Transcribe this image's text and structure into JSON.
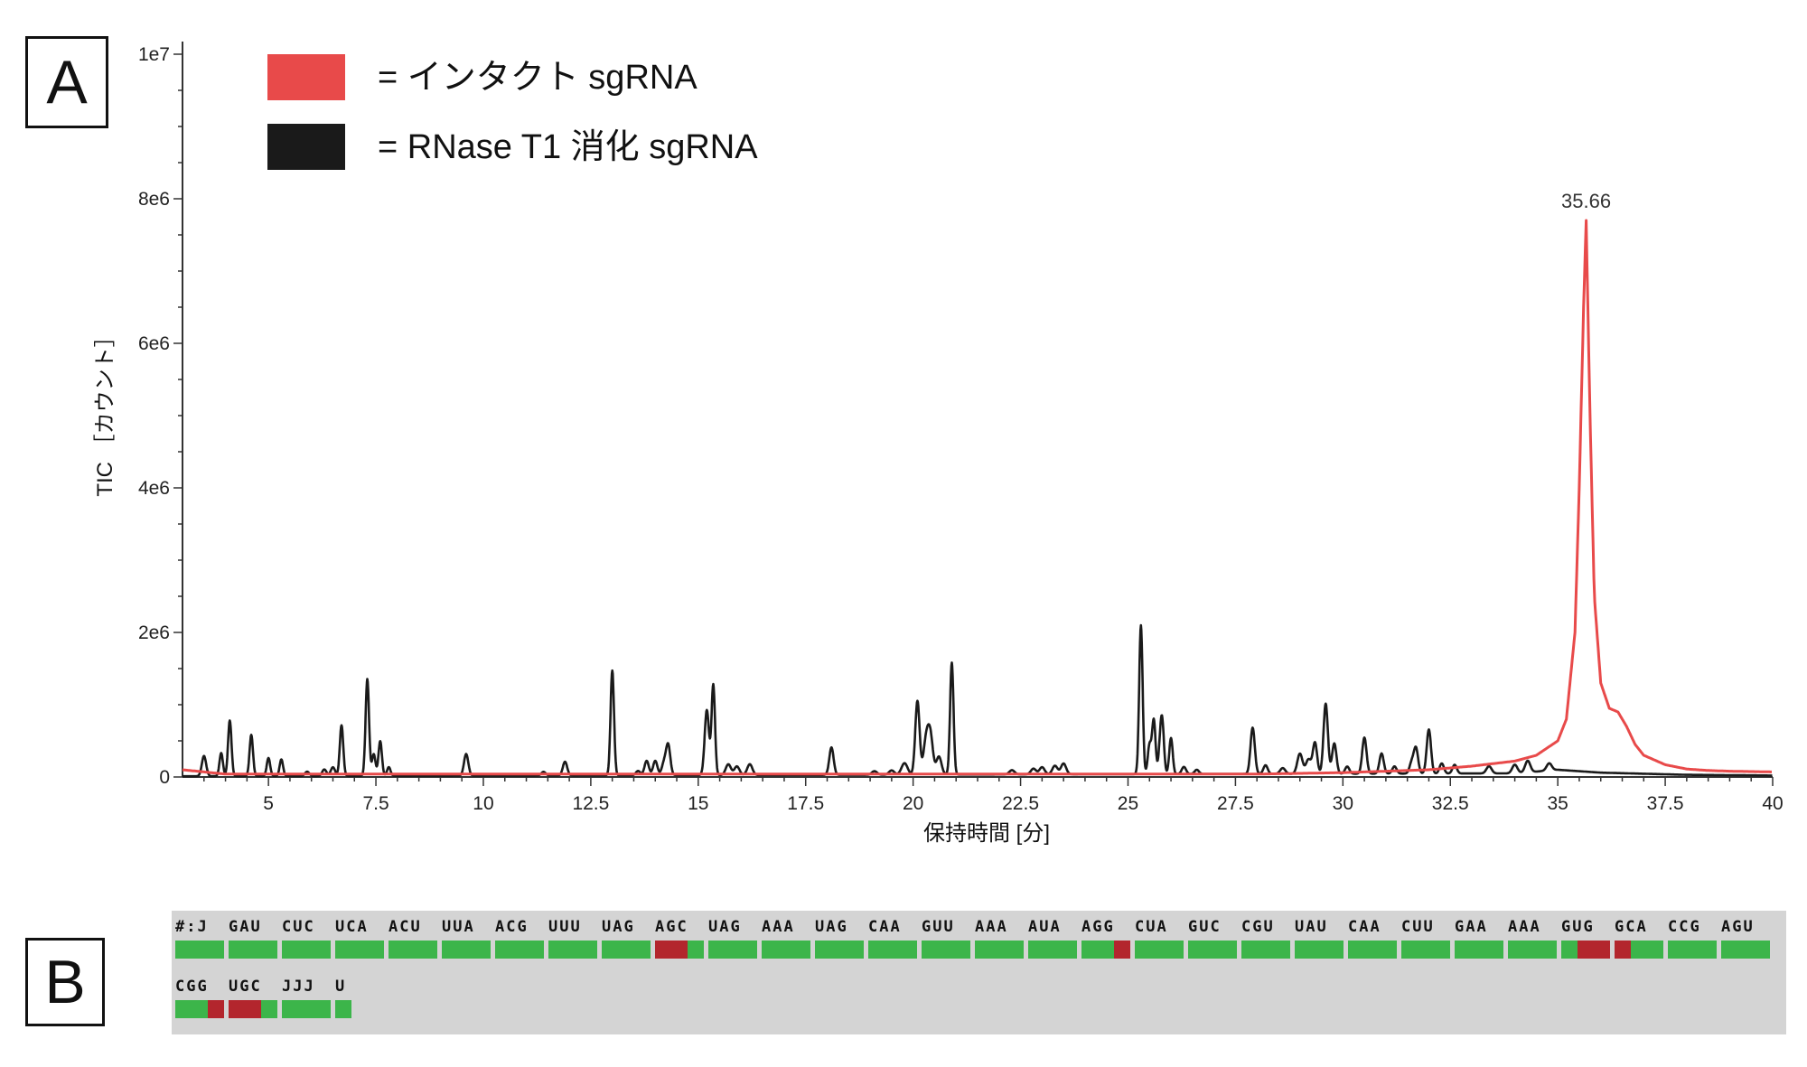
{
  "panels": {
    "a": "A",
    "b": "B"
  },
  "colors": {
    "intact": "#e84a4a",
    "digest": "#1a1a1a",
    "ok": "#3cb54a",
    "bad": "#b3262d"
  },
  "chart_data": {
    "type": "line",
    "xlabel": "保持時間 [分]",
    "ylabel": "TIC ［カウント］",
    "xlim": [
      3,
      40
    ],
    "ylim": [
      0,
      10000000
    ],
    "x_ticks": [
      5,
      7.5,
      10,
      12.5,
      15,
      17.5,
      20,
      22.5,
      25,
      27.5,
      30,
      32.5,
      35,
      37.5,
      40
    ],
    "x_tick_labels": [
      "5",
      "7.5",
      "10",
      "12.5",
      "15",
      "17.5",
      "20",
      "22.5",
      "25",
      "27.5",
      "30",
      "32.5",
      "35",
      "37.5",
      "40"
    ],
    "y_ticks": [
      0,
      2000000,
      4000000,
      6000000,
      8000000,
      10000000
    ],
    "y_tick_labels": [
      "0",
      "2e6",
      "4e6",
      "6e6",
      "8e6",
      "1e7"
    ],
    "legend": [
      {
        "label": "= インタクト sgRNA",
        "color": "#e84a4a"
      },
      {
        "label": "= RNase T1 消化 sgRNA",
        "color": "#1a1a1a"
      }
    ],
    "annotations": [
      {
        "x": 35.66,
        "y": 7700000,
        "text": "35.66"
      }
    ],
    "series": [
      {
        "key": "intact",
        "x": [
          3,
          4,
          6,
          10,
          15,
          20,
          25,
          28,
          30,
          32,
          33,
          34,
          34.5,
          35,
          35.2,
          35.4,
          35.5,
          35.6,
          35.66,
          35.75,
          35.85,
          36,
          36.2,
          36.4,
          36.6,
          36.8,
          37,
          37.5,
          38,
          38.5,
          39,
          40
        ],
        "y": [
          100000,
          40000,
          40000,
          40000,
          40000,
          40000,
          40000,
          40000,
          60000,
          100000,
          150000,
          220000,
          300000,
          500000,
          800000,
          2000000,
          4000000,
          6500000,
          7700000,
          5000000,
          2500000,
          1300000,
          950000,
          900000,
          700000,
          450000,
          300000,
          170000,
          110000,
          90000,
          80000,
          70000
        ]
      },
      {
        "key": "digest",
        "baseline": [
          [
            3,
            10000
          ],
          [
            34,
            50000
          ],
          [
            35,
            100000
          ],
          [
            36,
            60000
          ],
          [
            38,
            30000
          ],
          [
            40,
            20000
          ]
        ],
        "peaks": [
          [
            3.5,
            280000,
            0.05
          ],
          [
            3.9,
            320000,
            0.04
          ],
          [
            4.1,
            770000,
            0.04
          ],
          [
            4.6,
            570000,
            0.04
          ],
          [
            5.0,
            250000,
            0.04
          ],
          [
            5.3,
            230000,
            0.04
          ],
          [
            5.9,
            60000,
            0.05
          ],
          [
            6.3,
            90000,
            0.05
          ],
          [
            6.5,
            120000,
            0.05
          ],
          [
            6.7,
            700000,
            0.04
          ],
          [
            7.3,
            1340000,
            0.04
          ],
          [
            7.45,
            300000,
            0.04
          ],
          [
            7.6,
            480000,
            0.04
          ],
          [
            7.8,
            120000,
            0.04
          ],
          [
            9.6,
            300000,
            0.05
          ],
          [
            11.4,
            50000,
            0.05
          ],
          [
            11.9,
            190000,
            0.05
          ],
          [
            13.0,
            1450000,
            0.04
          ],
          [
            13.6,
            60000,
            0.05
          ],
          [
            13.8,
            200000,
            0.05
          ],
          [
            14.0,
            200000,
            0.05
          ],
          [
            14.2,
            160000,
            0.05
          ],
          [
            14.3,
            420000,
            0.05
          ],
          [
            15.2,
            900000,
            0.05
          ],
          [
            15.35,
            1250000,
            0.04
          ],
          [
            15.7,
            150000,
            0.06
          ],
          [
            15.9,
            120000,
            0.06
          ],
          [
            16.2,
            150000,
            0.06
          ],
          [
            18.1,
            380000,
            0.05
          ],
          [
            19.1,
            50000,
            0.06
          ],
          [
            19.5,
            60000,
            0.06
          ],
          [
            19.8,
            160000,
            0.07
          ],
          [
            20.1,
            1020000,
            0.05
          ],
          [
            20.3,
            450000,
            0.06
          ],
          [
            20.4,
            530000,
            0.06
          ],
          [
            20.6,
            250000,
            0.06
          ],
          [
            20.9,
            1550000,
            0.04
          ],
          [
            22.3,
            60000,
            0.06
          ],
          [
            22.8,
            80000,
            0.06
          ],
          [
            23.0,
            100000,
            0.06
          ],
          [
            23.3,
            120000,
            0.06
          ],
          [
            23.5,
            150000,
            0.06
          ],
          [
            25.3,
            2060000,
            0.04
          ],
          [
            25.5,
            400000,
            0.04
          ],
          [
            25.6,
            750000,
            0.04
          ],
          [
            25.75,
            350000,
            0.04
          ],
          [
            25.8,
            620000,
            0.04
          ],
          [
            26.0,
            500000,
            0.04
          ],
          [
            26.3,
            100000,
            0.05
          ],
          [
            26.6,
            60000,
            0.05
          ],
          [
            27.9,
            640000,
            0.05
          ],
          [
            28.2,
            120000,
            0.05
          ],
          [
            28.6,
            80000,
            0.06
          ],
          [
            29.0,
            280000,
            0.06
          ],
          [
            29.2,
            200000,
            0.06
          ],
          [
            29.35,
            430000,
            0.05
          ],
          [
            29.6,
            970000,
            0.05
          ],
          [
            29.8,
            420000,
            0.05
          ],
          [
            30.1,
            100000,
            0.05
          ],
          [
            30.5,
            500000,
            0.05
          ],
          [
            30.9,
            280000,
            0.05
          ],
          [
            31.2,
            100000,
            0.05
          ],
          [
            31.6,
            150000,
            0.05
          ],
          [
            31.7,
            350000,
            0.05
          ],
          [
            32.0,
            610000,
            0.05
          ],
          [
            32.3,
            140000,
            0.05
          ],
          [
            32.6,
            120000,
            0.05
          ],
          [
            33.4,
            100000,
            0.06
          ],
          [
            34.0,
            120000,
            0.06
          ],
          [
            34.3,
            160000,
            0.06
          ],
          [
            34.8,
            100000,
            0.06
          ]
        ]
      }
    ]
  },
  "sequence": {
    "rows": [
      {
        "codons": [
          "#:J",
          "GAU",
          "CUC",
          "UCA",
          "ACU",
          "UUA",
          "ACG",
          "UUU",
          "UAG",
          "AGC",
          "UAG",
          "AAA",
          "UAG",
          "CAA",
          "GUU",
          "AAA",
          "AUA",
          "AGG",
          "CUA",
          "GUC",
          "CGU",
          "UAU",
          "CAA",
          "CUU",
          "GAA",
          "AAA",
          "GUG",
          "GCA",
          "CCG",
          "AGU"
        ],
        "status": [
          "ggg",
          "ggg",
          "ggg",
          "ggg",
          "ggg",
          "ggg",
          "ggg",
          "ggg",
          "ggg",
          "rrg",
          "ggg",
          "ggg",
          "ggg",
          "ggg",
          "ggg",
          "ggg",
          "ggg",
          "ggr",
          "ggg",
          "ggg",
          "ggg",
          "ggg",
          "ggg",
          "ggg",
          "ggg",
          "ggg",
          "grr",
          "rgg",
          "ggg",
          "ggg"
        ]
      },
      {
        "codons": [
          "CGG",
          "UGC",
          "JJJ",
          "U"
        ],
        "status": [
          "ggr",
          "rrg",
          "ggg",
          "g"
        ]
      }
    ]
  }
}
